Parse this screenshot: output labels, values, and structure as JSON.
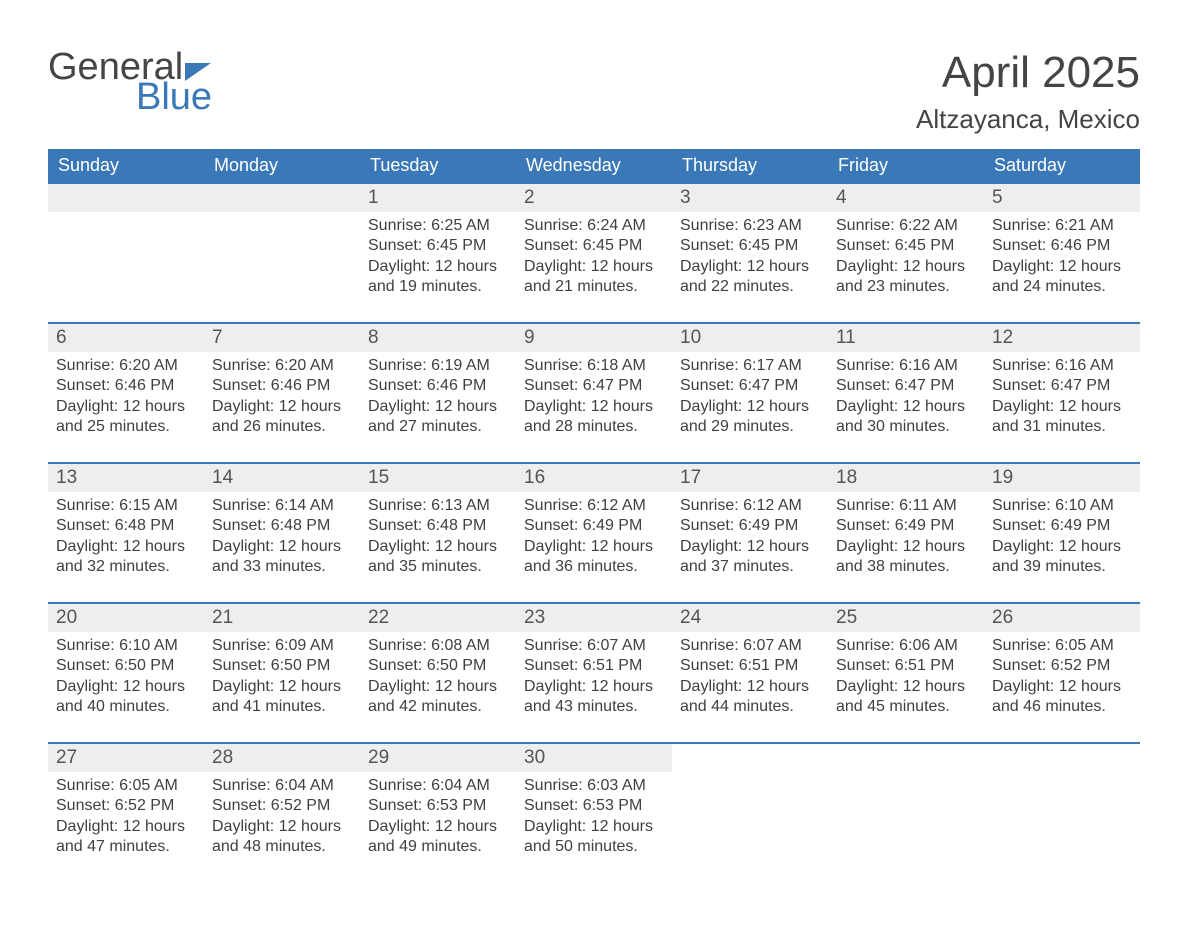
{
  "brand": {
    "line1": "General",
    "line2": "Blue"
  },
  "title": "April 2025",
  "location": "Altzayanca, Mexico",
  "colors": {
    "brand_blue": "#3b78b8",
    "header_row_bg": "#3b78b8",
    "header_row_text": "#ffffff",
    "daynum_bg": "#eeeeee",
    "cell_top_border": "#3b78b8",
    "body_text": "#404040",
    "title_text": "#444444",
    "background": "#ffffff"
  },
  "typography": {
    "title_fontsize_pt": 33,
    "location_fontsize_pt": 20,
    "dow_fontsize_pt": 14,
    "daynum_fontsize_pt": 14,
    "body_fontsize_pt": 12,
    "logo_fontsize_pt": 29
  },
  "labels": {
    "sunrise_prefix": "Sunrise: ",
    "sunset_prefix": "Sunset: ",
    "daylight_prefix": "Daylight: "
  },
  "days_of_week": [
    "Sunday",
    "Monday",
    "Tuesday",
    "Wednesday",
    "Thursday",
    "Friday",
    "Saturday"
  ],
  "weeks": [
    [
      null,
      null,
      {
        "n": 1,
        "sunrise": "6:25 AM",
        "sunset": "6:45 PM",
        "daylight": "12 hours and 19 minutes."
      },
      {
        "n": 2,
        "sunrise": "6:24 AM",
        "sunset": "6:45 PM",
        "daylight": "12 hours and 21 minutes."
      },
      {
        "n": 3,
        "sunrise": "6:23 AM",
        "sunset": "6:45 PM",
        "daylight": "12 hours and 22 minutes."
      },
      {
        "n": 4,
        "sunrise": "6:22 AM",
        "sunset": "6:45 PM",
        "daylight": "12 hours and 23 minutes."
      },
      {
        "n": 5,
        "sunrise": "6:21 AM",
        "sunset": "6:46 PM",
        "daylight": "12 hours and 24 minutes."
      }
    ],
    [
      {
        "n": 6,
        "sunrise": "6:20 AM",
        "sunset": "6:46 PM",
        "daylight": "12 hours and 25 minutes."
      },
      {
        "n": 7,
        "sunrise": "6:20 AM",
        "sunset": "6:46 PM",
        "daylight": "12 hours and 26 minutes."
      },
      {
        "n": 8,
        "sunrise": "6:19 AM",
        "sunset": "6:46 PM",
        "daylight": "12 hours and 27 minutes."
      },
      {
        "n": 9,
        "sunrise": "6:18 AM",
        "sunset": "6:47 PM",
        "daylight": "12 hours and 28 minutes."
      },
      {
        "n": 10,
        "sunrise": "6:17 AM",
        "sunset": "6:47 PM",
        "daylight": "12 hours and 29 minutes."
      },
      {
        "n": 11,
        "sunrise": "6:16 AM",
        "sunset": "6:47 PM",
        "daylight": "12 hours and 30 minutes."
      },
      {
        "n": 12,
        "sunrise": "6:16 AM",
        "sunset": "6:47 PM",
        "daylight": "12 hours and 31 minutes."
      }
    ],
    [
      {
        "n": 13,
        "sunrise": "6:15 AM",
        "sunset": "6:48 PM",
        "daylight": "12 hours and 32 minutes."
      },
      {
        "n": 14,
        "sunrise": "6:14 AM",
        "sunset": "6:48 PM",
        "daylight": "12 hours and 33 minutes."
      },
      {
        "n": 15,
        "sunrise": "6:13 AM",
        "sunset": "6:48 PM",
        "daylight": "12 hours and 35 minutes."
      },
      {
        "n": 16,
        "sunrise": "6:12 AM",
        "sunset": "6:49 PM",
        "daylight": "12 hours and 36 minutes."
      },
      {
        "n": 17,
        "sunrise": "6:12 AM",
        "sunset": "6:49 PM",
        "daylight": "12 hours and 37 minutes."
      },
      {
        "n": 18,
        "sunrise": "6:11 AM",
        "sunset": "6:49 PM",
        "daylight": "12 hours and 38 minutes."
      },
      {
        "n": 19,
        "sunrise": "6:10 AM",
        "sunset": "6:49 PM",
        "daylight": "12 hours and 39 minutes."
      }
    ],
    [
      {
        "n": 20,
        "sunrise": "6:10 AM",
        "sunset": "6:50 PM",
        "daylight": "12 hours and 40 minutes."
      },
      {
        "n": 21,
        "sunrise": "6:09 AM",
        "sunset": "6:50 PM",
        "daylight": "12 hours and 41 minutes."
      },
      {
        "n": 22,
        "sunrise": "6:08 AM",
        "sunset": "6:50 PM",
        "daylight": "12 hours and 42 minutes."
      },
      {
        "n": 23,
        "sunrise": "6:07 AM",
        "sunset": "6:51 PM",
        "daylight": "12 hours and 43 minutes."
      },
      {
        "n": 24,
        "sunrise": "6:07 AM",
        "sunset": "6:51 PM",
        "daylight": "12 hours and 44 minutes."
      },
      {
        "n": 25,
        "sunrise": "6:06 AM",
        "sunset": "6:51 PM",
        "daylight": "12 hours and 45 minutes."
      },
      {
        "n": 26,
        "sunrise": "6:05 AM",
        "sunset": "6:52 PM",
        "daylight": "12 hours and 46 minutes."
      }
    ],
    [
      {
        "n": 27,
        "sunrise": "6:05 AM",
        "sunset": "6:52 PM",
        "daylight": "12 hours and 47 minutes."
      },
      {
        "n": 28,
        "sunrise": "6:04 AM",
        "sunset": "6:52 PM",
        "daylight": "12 hours and 48 minutes."
      },
      {
        "n": 29,
        "sunrise": "6:04 AM",
        "sunset": "6:53 PM",
        "daylight": "12 hours and 49 minutes."
      },
      {
        "n": 30,
        "sunrise": "6:03 AM",
        "sunset": "6:53 PM",
        "daylight": "12 hours and 50 minutes."
      },
      null,
      null,
      null
    ]
  ]
}
